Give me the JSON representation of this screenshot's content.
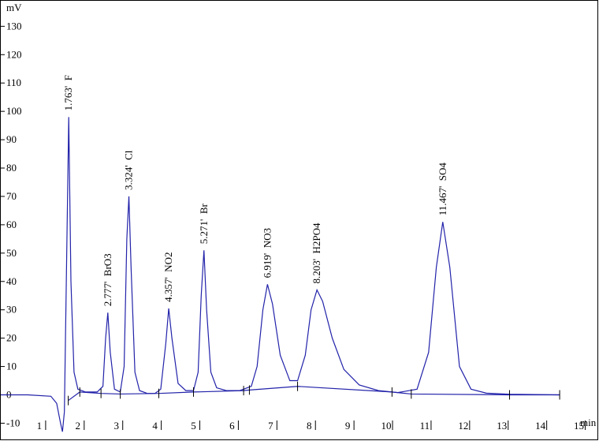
{
  "chart_data": {
    "type": "line",
    "y_label": "mV",
    "x_label": "min",
    "xlim": [
      0,
      15.5
    ],
    "ylim": [
      -16,
      139
    ],
    "xticks": [
      1,
      2,
      3,
      4,
      5,
      6,
      7,
      8,
      9,
      10,
      11,
      12,
      13,
      14,
      15
    ],
    "yticks": [
      -10,
      0,
      10,
      20,
      30,
      40,
      50,
      60,
      70,
      80,
      90,
      100,
      110,
      120,
      130
    ],
    "series": [
      {
        "color": "#2222aa",
        "x": [
          0,
          0.7,
          1.3,
          1.45,
          1.55,
          1.6,
          1.65,
          1.7,
          1.763,
          1.82,
          1.9,
          2.0,
          2.2,
          2.5,
          2.65,
          2.72,
          2.777,
          2.84,
          2.95,
          3.1,
          3.2,
          3.27,
          3.324,
          3.38,
          3.48,
          3.6,
          3.8,
          4.0,
          4.15,
          4.28,
          4.357,
          4.44,
          4.6,
          4.8,
          5.0,
          5.12,
          5.2,
          5.271,
          5.34,
          5.45,
          5.6,
          5.85,
          6.2,
          6.5,
          6.65,
          6.8,
          6.919,
          7.05,
          7.25,
          7.5,
          7.7,
          7.9,
          8.05,
          8.203,
          8.35,
          8.6,
          8.9,
          9.3,
          9.8,
          10.3,
          10.8,
          11.1,
          11.3,
          11.467,
          11.65,
          11.9,
          12.2,
          12.6,
          13.2,
          14.5
        ],
        "values": [
          0,
          0,
          -0.5,
          -3,
          -10,
          -13,
          -6,
          40,
          98,
          40,
          8,
          2,
          1,
          1,
          3,
          20,
          29,
          15,
          2,
          1,
          10,
          55,
          70,
          45,
          8,
          1.5,
          0.5,
          0.5,
          2,
          18,
          30.5,
          20,
          4,
          1.5,
          1.5,
          8,
          35,
          51,
          30,
          8,
          2.5,
          1.5,
          1.5,
          3,
          10,
          30,
          39,
          32,
          14,
          5,
          5,
          14,
          30,
          37,
          33,
          20,
          9,
          3.5,
          1.5,
          0.8,
          2,
          15,
          45,
          61,
          45,
          10,
          2,
          0.6,
          0.2,
          0
        ]
      },
      {
        "color": "#2222aa",
        "x": [
          1.75,
          2.05,
          2.6,
          3.1,
          4.1,
          5.0,
          6.3,
          6.45,
          7.7,
          10.15,
          10.65,
          13.2,
          14.5
        ],
        "values": [
          -2,
          1,
          0.5,
          0.3,
          0.5,
          1,
          1.5,
          1.7,
          3,
          1,
          0.3,
          0,
          0
        ]
      }
    ],
    "annotations": [
      {
        "text": "1.763'  F",
        "x": 1.763,
        "y": 98
      },
      {
        "text": "2.777'  BrO3",
        "x": 2.777,
        "y": 29
      },
      {
        "text": "3.324'  Cl",
        "x": 3.324,
        "y": 70
      },
      {
        "text": "4.357'  NO2",
        "x": 4.357,
        "y": 30.5
      },
      {
        "text": "5.271'  Br",
        "x": 5.271,
        "y": 51
      },
      {
        "text": "6.919'  NO3",
        "x": 6.919,
        "y": 39
      },
      {
        "text": "8.203'  H2PO4",
        "x": 8.203,
        "y": 37
      },
      {
        "text": "11.467'  SO4",
        "x": 11.467,
        "y": 61
      }
    ]
  }
}
